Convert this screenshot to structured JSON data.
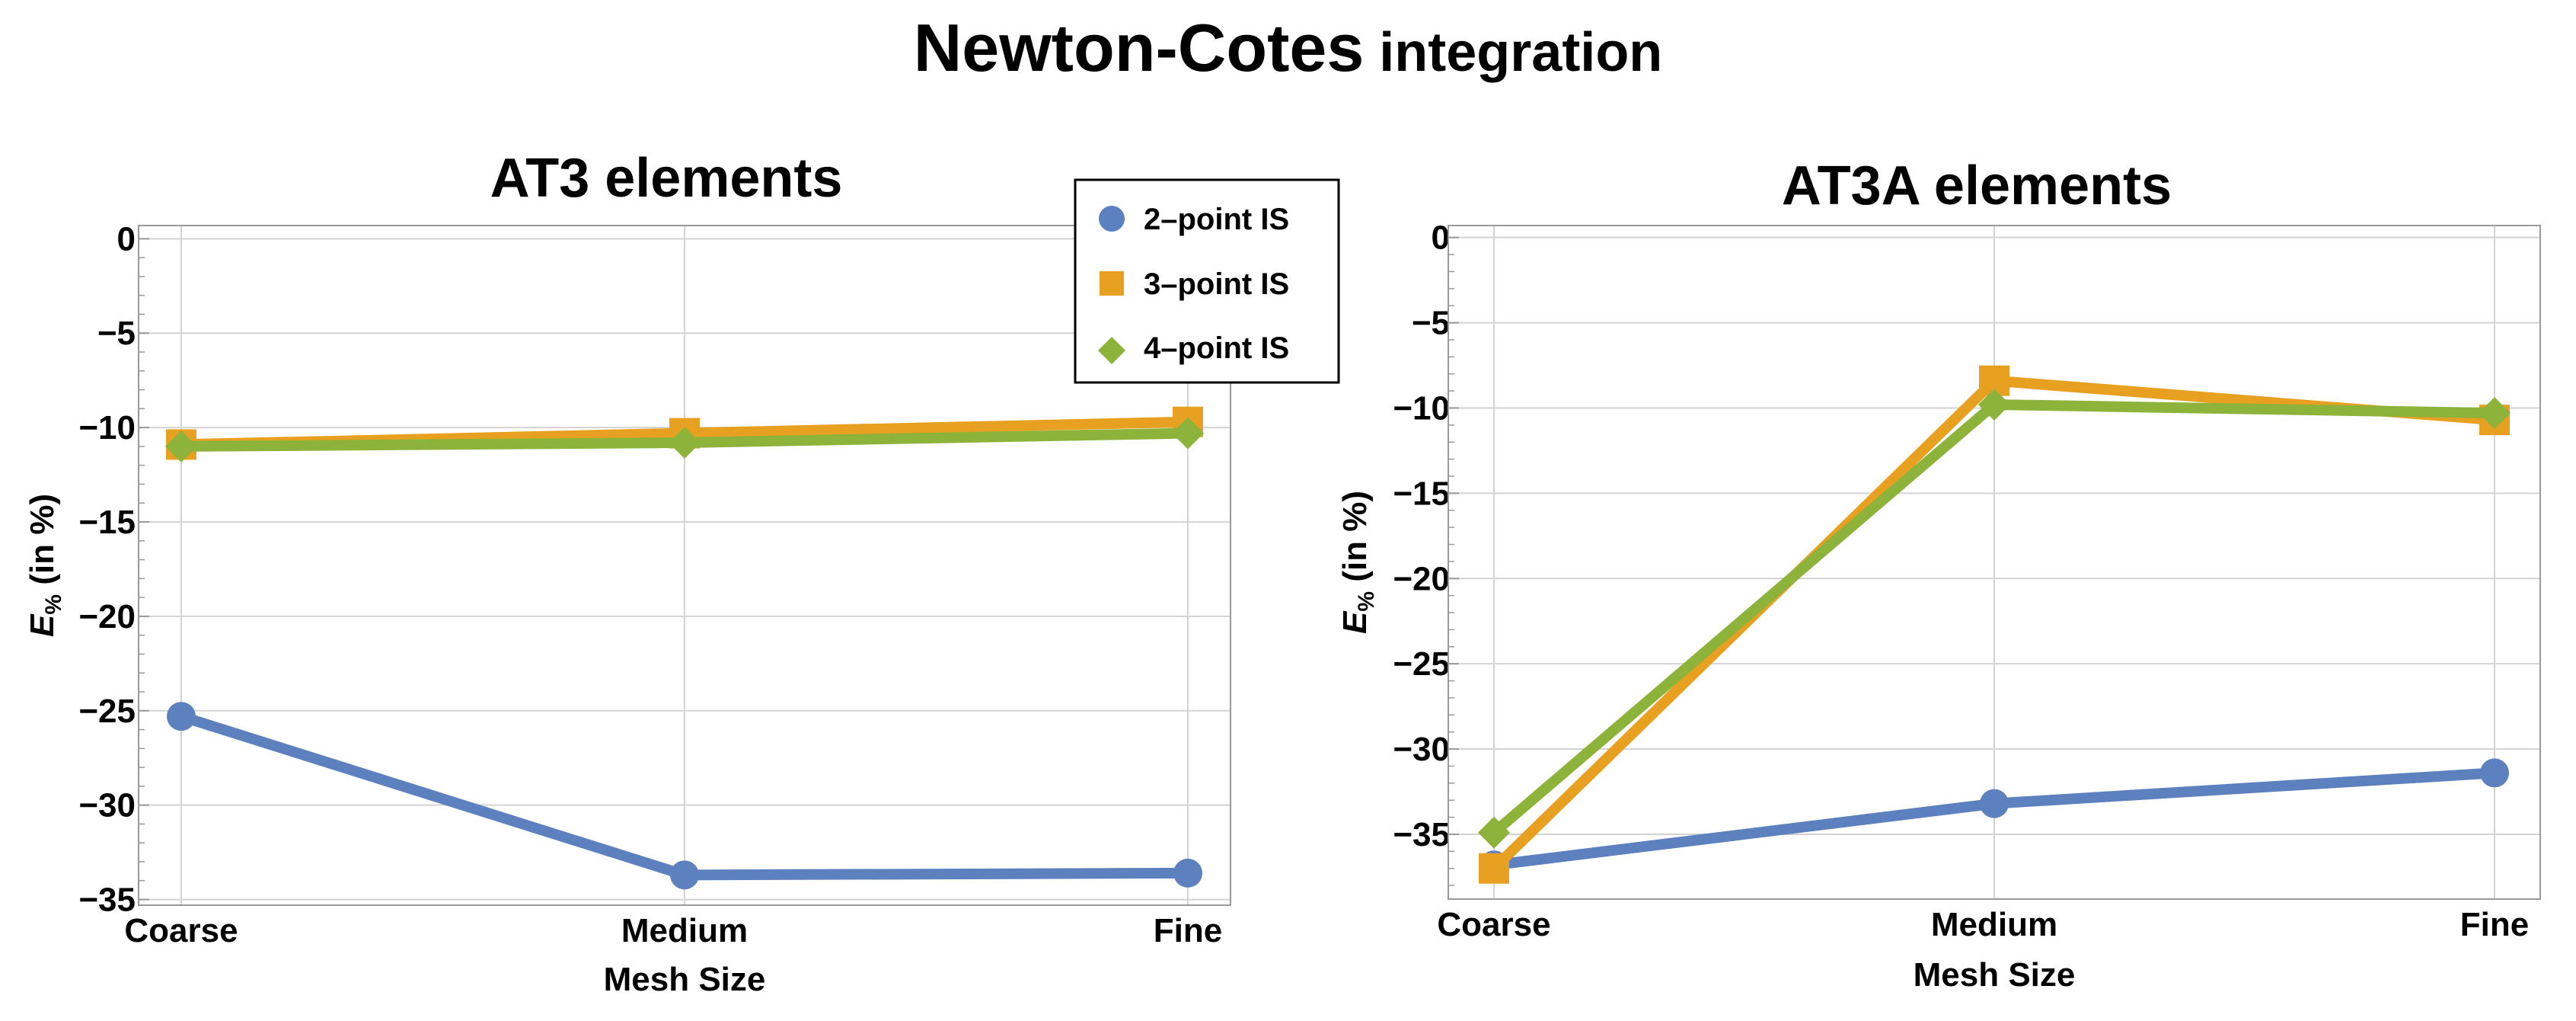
{
  "figure": {
    "title_main": "Newton-Cotes",
    "title_rest": " integration"
  },
  "colors": {
    "series_2pt": "#5d81bf",
    "series_3pt": "#e8a020",
    "series_4pt": "#8db33a",
    "grid": "#d3d3d3",
    "axis": "#9a9a9a"
  },
  "legend": {
    "entries": [
      "2–point IS",
      "3–point IS",
      "4–point IS"
    ]
  },
  "chart_data": [
    {
      "type": "line",
      "title": "AT3 elements",
      "xlabel": "Mesh Size",
      "ylabel_main": "E",
      "ylabel_sub": "%",
      "ylabel_rest": " (in %)",
      "categories": [
        "Coarse",
        "Medium",
        "Fine"
      ],
      "ylim": [
        -35.3,
        0.7
      ],
      "yticks": [
        0,
        -5,
        -10,
        -15,
        -20,
        -25,
        -30,
        -35
      ],
      "ytick_labels": [
        "0",
        "−5",
        "−10",
        "−15",
        "−20",
        "−25",
        "−30",
        "−35"
      ],
      "series": [
        {
          "name": "2–point IS",
          "marker": "circle",
          "values": [
            -25.3,
            -33.7,
            -33.6
          ]
        },
        {
          "name": "3–point IS",
          "marker": "square",
          "values": [
            -10.9,
            -10.3,
            -9.7
          ]
        },
        {
          "name": "4–point IS",
          "marker": "diamond",
          "values": [
            -11.0,
            -10.8,
            -10.3
          ]
        }
      ]
    },
    {
      "type": "line",
      "title": "AT3A elements",
      "xlabel": "Mesh Size",
      "ylabel_main": "E",
      "ylabel_sub": "%",
      "ylabel_rest": " (in %)",
      "categories": [
        "Coarse",
        "Medium",
        "Fine"
      ],
      "ylim": [
        -38.8,
        0.7
      ],
      "yticks": [
        0,
        -5,
        -10,
        -15,
        -20,
        -25,
        -30,
        -35
      ],
      "ytick_labels": [
        "0",
        "−5",
        "−10",
        "−15",
        "−20",
        "−25",
        "−30",
        "−35"
      ],
      "series": [
        {
          "name": "2–point IS",
          "marker": "circle",
          "values": [
            -36.8,
            -33.2,
            -31.4
          ]
        },
        {
          "name": "3–point IS",
          "marker": "square",
          "values": [
            -37.0,
            -8.4,
            -10.7
          ]
        },
        {
          "name": "4–point IS",
          "marker": "diamond",
          "values": [
            -34.9,
            -9.8,
            -10.3
          ]
        }
      ]
    }
  ]
}
